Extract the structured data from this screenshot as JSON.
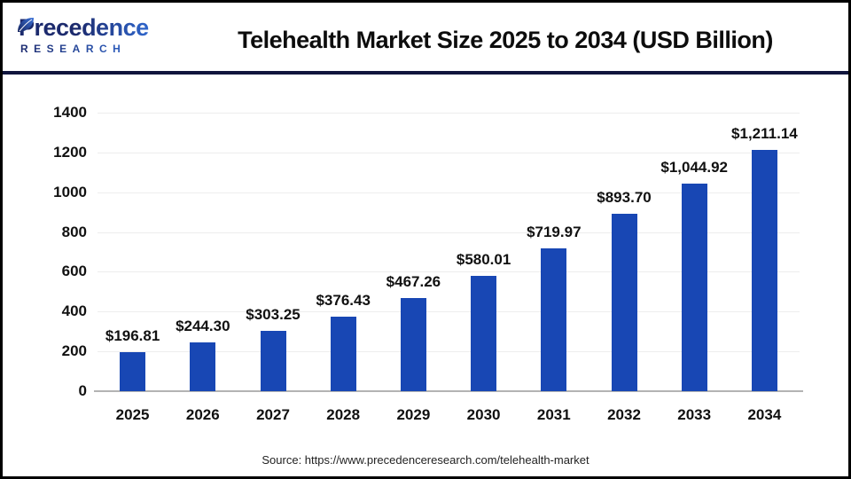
{
  "header": {
    "logo": {
      "line1": "Precedence",
      "line2": "RESEARCH"
    },
    "title": "Telehealth Market Size 2025 to 2034 (USD Billion)"
  },
  "chart_data": {
    "type": "bar",
    "title": "Telehealth Market Size 2025 to 2034 (USD Billion)",
    "categories": [
      "2025",
      "2026",
      "2027",
      "2028",
      "2029",
      "2030",
      "2031",
      "2032",
      "2033",
      "2034"
    ],
    "values": [
      196.81,
      244.3,
      303.25,
      376.43,
      467.26,
      580.01,
      719.97,
      893.7,
      1044.92,
      1211.14
    ],
    "bar_labels": [
      "$196.81",
      "$244.30",
      "$303.25",
      "$376.43",
      "$467.26",
      "$580.01",
      "$719.97",
      "$893.70",
      "$1,044.92",
      "$1,211.14"
    ],
    "xlabel": "",
    "ylabel": "",
    "ylim": [
      0,
      1400
    ],
    "yticks": [
      0,
      200,
      400,
      600,
      800,
      1000,
      1200,
      1400
    ],
    "grid": true,
    "legend": "none",
    "bar_color": "#1847b4"
  },
  "footer": {
    "source": "Source: https://www.precedenceresearch.com/telehealth-market"
  },
  "colors": {
    "bar": "#1847b4",
    "divider": "#10153d",
    "logo_navy": "#1c2a6d",
    "logo_blue": "#2f66cc",
    "gridline": "#ededed",
    "baseline": "#b3b3b3",
    "text": "#111111",
    "border": "#000000"
  }
}
